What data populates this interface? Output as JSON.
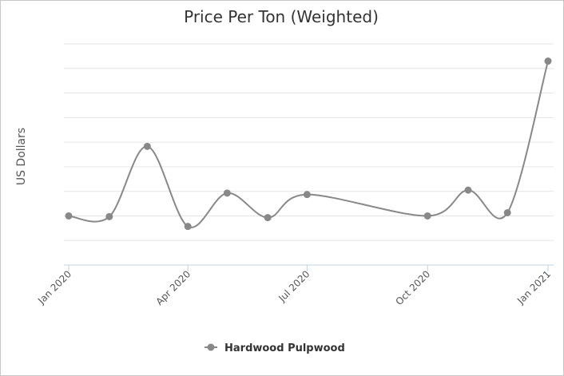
{
  "chart_data": {
    "type": "line",
    "title": "Price Per Ton (Weighted)",
    "xlabel": "",
    "ylabel": "US Dollars",
    "x_tick_labels": [
      "Jan 2020",
      "Apr 2020",
      "Jul 2020",
      "Oct 2020",
      "Jan 2021"
    ],
    "x_ticks": [
      "2020-01-01",
      "2020-04-01",
      "2020-07-01",
      "2020-10-01",
      "2021-01-01"
    ],
    "x": [
      "2020-01-01",
      "2020-02-01",
      "2020-03-01",
      "2020-04-01",
      "2020-05-01",
      "2020-06-01",
      "2020-07-01",
      "2020-10-01",
      "2020-11-01",
      "2020-12-01",
      "2021-01-01"
    ],
    "series": [
      {
        "name": "Hardwood Pulpwood",
        "color": "#888888",
        "values": [
          1.0,
          0.97,
          3.83,
          0.57,
          1.93,
          0.93,
          1.87,
          1.0,
          2.05,
          1.13,
          7.3
        ]
      }
    ],
    "ylim": [
      -1,
      8
    ],
    "y_gridlines": [
      0,
      1,
      2,
      3,
      4,
      5,
      6,
      7,
      8
    ],
    "y_tick_labels_shown": false,
    "grid": true,
    "smooth": true,
    "legend": "bottom-center"
  }
}
